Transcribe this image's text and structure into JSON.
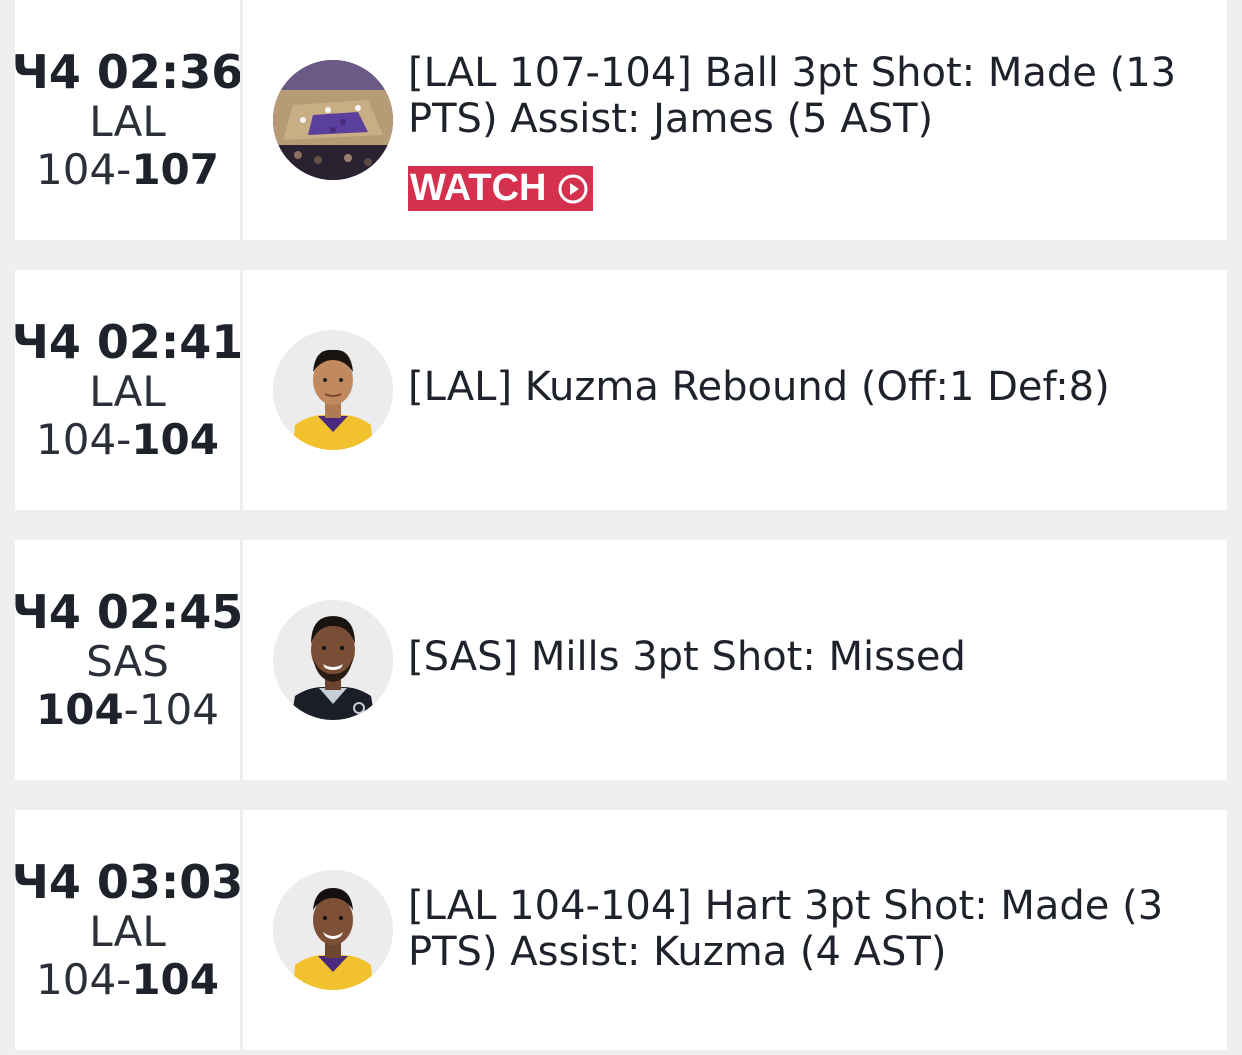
{
  "plays": [
    {
      "period_clock": "Ч4 02:36",
      "team": "LAL",
      "score_left": "104",
      "score_sep": "-",
      "score_right": "107",
      "lead_side": "right",
      "description": "[LAL 107-104] Ball 3pt Shot: Made (13 PTS) Assist: James (5 AST)",
      "thumbnail_icon": "video-court-thumbnail",
      "watch_label": "WATCH"
    },
    {
      "period_clock": "Ч4 02:41",
      "team": "LAL",
      "score_left": "104",
      "score_sep": "-",
      "score_right": "104",
      "lead_side": "right",
      "description": "[LAL] Kuzma Rebound (Off:1 Def:8)",
      "thumbnail_icon": "player-headshot-lakers"
    },
    {
      "period_clock": "Ч4 02:45",
      "team": "SAS",
      "score_left": "104",
      "score_sep": "-",
      "score_right": "104",
      "lead_side": "left",
      "description": "[SAS] Mills 3pt Shot: Missed",
      "thumbnail_icon": "player-headshot-spurs"
    },
    {
      "period_clock": "Ч4 03:03",
      "team": "LAL",
      "score_left": "104",
      "score_sep": "-",
      "score_right": "104",
      "lead_side": "right",
      "description": "[LAL 104-104] Hart 3pt Shot: Made (3 PTS) Assist: Kuzma (4 AST)",
      "thumbnail_icon": "player-headshot-lakers"
    }
  ],
  "colors": {
    "watch_button": "#d6304f",
    "background": "#efefef",
    "card": "#ffffff",
    "text": "#1e232b"
  }
}
